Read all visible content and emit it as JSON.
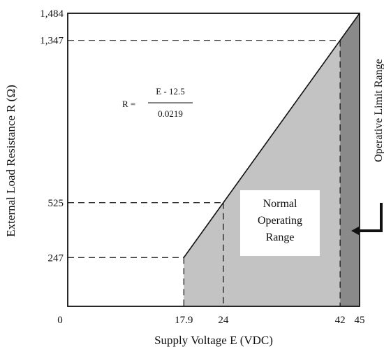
{
  "chart_data": {
    "type": "area",
    "xlabel": "Supply Voltage E (VDC)",
    "ylabel": "External Load Resistance R (Ω)",
    "xlim": [
      0,
      45
    ],
    "ylim": [
      0,
      1484
    ],
    "x_ticks": [
      {
        "value": 0,
        "label": "0"
      },
      {
        "value": 17.9,
        "label": "17.9"
      },
      {
        "value": 24,
        "label": "24"
      },
      {
        "value": 42,
        "label": "42"
      },
      {
        "value": 45,
        "label": "45"
      }
    ],
    "y_ticks": [
      {
        "value": 247,
        "label": "247"
      },
      {
        "value": 525,
        "label": "525"
      },
      {
        "value": 1347,
        "label": "1,347"
      },
      {
        "value": 1484,
        "label": "1,484"
      }
    ],
    "load_line": {
      "x": [
        17.9,
        45
      ],
      "y": [
        247,
        1484
      ]
    },
    "guides": [
      {
        "x": 17.9,
        "y": 247
      },
      {
        "x": 24,
        "y": 525
      },
      {
        "x": 42,
        "y": 1347
      }
    ],
    "regions": {
      "normal": {
        "label_lines": [
          "Normal",
          "Operating",
          "Range"
        ],
        "x_from": 17.9,
        "x_to": 42,
        "color": "#c3c3c3"
      },
      "limit": {
        "label": "Operative Limit Range",
        "x_from": 42,
        "x_to": 45,
        "color": "#8a8a8a"
      }
    },
    "formula": {
      "lhs": "R =",
      "numerator": "E - 12.5",
      "denominator": "0.0219"
    },
    "grid": false
  }
}
